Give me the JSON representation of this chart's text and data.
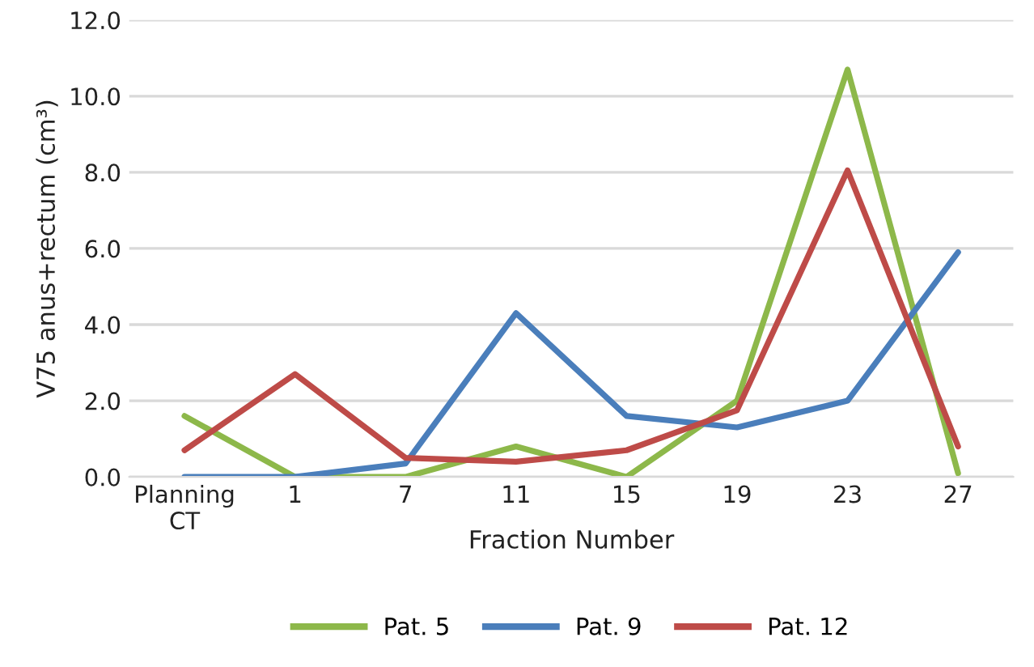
{
  "chart_data": {
    "type": "line",
    "xlabel": "Fraction Number",
    "ylabel": "V75 anus+rectum (cm³)",
    "categories": [
      "Planning\nCT",
      "1",
      "7",
      "11",
      "15",
      "19",
      "23",
      "27"
    ],
    "series": [
      {
        "name": "Pat. 5",
        "color": "#8db84a",
        "values": [
          1.6,
          0.0,
          0.0,
          0.8,
          0.0,
          2.0,
          10.7,
          0.1
        ]
      },
      {
        "name": "Pat. 9",
        "color": "#4a7ebb",
        "values": [
          0.0,
          0.0,
          0.35,
          4.3,
          1.6,
          1.3,
          2.0,
          5.9
        ]
      },
      {
        "name": "Pat. 12",
        "color": "#be4b48",
        "values": [
          0.7,
          2.7,
          0.5,
          0.4,
          0.7,
          1.75,
          8.05,
          0.8
        ]
      }
    ],
    "ylim": [
      0,
      12
    ],
    "yticks": [
      {
        "value": 0,
        "label": "0.0"
      },
      {
        "value": 2,
        "label": "2.0"
      },
      {
        "value": 4,
        "label": "4.0"
      },
      {
        "value": 6,
        "label": "6.0"
      },
      {
        "value": 8,
        "label": "8.0"
      },
      {
        "value": 10,
        "label": "10.0"
      },
      {
        "value": 12,
        "label": "12.0"
      }
    ],
    "grid": "y",
    "legend": "bottom",
    "marker": "none",
    "line_style": "solid"
  }
}
